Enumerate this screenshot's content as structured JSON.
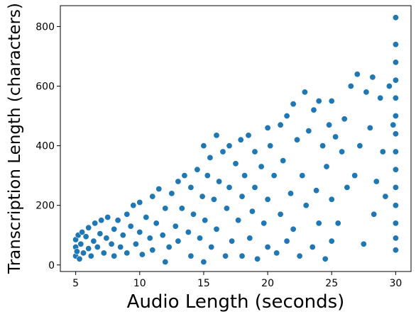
{
  "chart_data": {
    "type": "scatter",
    "title": "",
    "xlabel": "Audio Length (seconds)",
    "ylabel": "Transcription Length (characters)",
    "xlim": [
      3.8,
      31.2
    ],
    "ylim": [
      -22,
      870
    ],
    "xticks": [
      5,
      10,
      15,
      20,
      25,
      30
    ],
    "yticks": [
      0,
      200,
      400,
      600,
      800
    ],
    "grid": false,
    "legend": "none",
    "marker_color": "#1f77b4",
    "edge_color": "#ffffff",
    "points": [
      [
        5.0,
        30
      ],
      [
        5.0,
        60
      ],
      [
        5.0,
        85
      ],
      [
        5.1,
        45
      ],
      [
        5.2,
        100
      ],
      [
        5.3,
        20
      ],
      [
        5.4,
        70
      ],
      [
        5.5,
        110
      ],
      [
        5.6,
        40
      ],
      [
        5.8,
        95
      ],
      [
        6.0,
        55
      ],
      [
        6.0,
        125
      ],
      [
        6.2,
        30
      ],
      [
        6.4,
        80
      ],
      [
        6.5,
        140
      ],
      [
        6.7,
        60
      ],
      [
        6.9,
        105
      ],
      [
        7.0,
        150
      ],
      [
        7.2,
        40
      ],
      [
        7.4,
        90
      ],
      [
        7.5,
        160
      ],
      [
        7.8,
        70
      ],
      [
        8.0,
        120
      ],
      [
        8.0,
        30
      ],
      [
        8.3,
        150
      ],
      [
        8.5,
        60
      ],
      [
        8.7,
        100
      ],
      [
        9.0,
        170
      ],
      [
        9.0,
        40
      ],
      [
        9.3,
        130
      ],
      [
        9.5,
        200
      ],
      [
        9.7,
        70
      ],
      [
        10.0,
        110
      ],
      [
        10.0,
        210
      ],
      [
        10.2,
        35
      ],
      [
        10.5,
        160
      ],
      [
        10.8,
        90
      ],
      [
        11.0,
        230
      ],
      [
        11.0,
        50
      ],
      [
        11.3,
        140
      ],
      [
        11.5,
        255
      ],
      [
        11.8,
        100
      ],
      [
        12.0,
        190
      ],
      [
        12.0,
        10
      ],
      [
        12.3,
        60
      ],
      [
        12.5,
        240
      ],
      [
        12.8,
        130
      ],
      [
        13.0,
        280
      ],
      [
        13.0,
        80
      ],
      [
        13.3,
        190
      ],
      [
        13.5,
        300
      ],
      [
        13.8,
        110
      ],
      [
        14.0,
        260
      ],
      [
        14.0,
        30
      ],
      [
        14.2,
        170
      ],
      [
        14.5,
        320
      ],
      [
        14.7,
        90
      ],
      [
        14.9,
        230
      ],
      [
        15.0,
        400
      ],
      [
        15.0,
        10
      ],
      [
        15.1,
        150
      ],
      [
        15.3,
        300
      ],
      [
        15.5,
        360
      ],
      [
        15.6,
        60
      ],
      [
        15.8,
        220
      ],
      [
        16.0,
        435
      ],
      [
        16.0,
        120
      ],
      [
        16.2,
        280
      ],
      [
        16.5,
        380
      ],
      [
        16.7,
        30
      ],
      [
        16.8,
        190
      ],
      [
        17.0,
        400
      ],
      [
        17.0,
        260
      ],
      [
        17.2,
        80
      ],
      [
        17.5,
        340
      ],
      [
        17.7,
        150
      ],
      [
        17.9,
        420
      ],
      [
        18.0,
        30
      ],
      [
        18.0,
        230
      ],
      [
        18.2,
        300
      ],
      [
        18.5,
        435
      ],
      [
        18.6,
        90
      ],
      [
        18.8,
        180
      ],
      [
        19.0,
        380
      ],
      [
        19.0,
        260
      ],
      [
        19.2,
        20
      ],
      [
        19.5,
        330
      ],
      [
        19.7,
        140
      ],
      [
        20.0,
        460
      ],
      [
        20.0,
        60
      ],
      [
        20.0,
        220
      ],
      [
        20.2,
        400
      ],
      [
        20.5,
        300
      ],
      [
        20.7,
        40
      ],
      [
        21.0,
        470
      ],
      [
        21.0,
        170
      ],
      [
        21.2,
        350
      ],
      [
        21.5,
        80
      ],
      [
        21.5,
        500
      ],
      [
        21.8,
        240
      ],
      [
        22.0,
        540
      ],
      [
        22.0,
        120
      ],
      [
        22.3,
        420
      ],
      [
        22.5,
        30
      ],
      [
        22.7,
        300
      ],
      [
        22.9,
        580
      ],
      [
        23.0,
        200
      ],
      [
        23.2,
        450
      ],
      [
        23.5,
        60
      ],
      [
        23.6,
        520
      ],
      [
        23.8,
        250
      ],
      [
        24.0,
        550
      ],
      [
        24.0,
        140
      ],
      [
        24.3,
        400
      ],
      [
        24.5,
        20
      ],
      [
        24.6,
        330
      ],
      [
        24.8,
        470
      ],
      [
        25.0,
        550
      ],
      [
        25.0,
        220
      ],
      [
        25.0,
        80
      ],
      [
        25.3,
        430
      ],
      [
        25.5,
        140
      ],
      [
        25.8,
        380
      ],
      [
        26.0,
        490
      ],
      [
        26.2,
        260
      ],
      [
        26.5,
        600
      ],
      [
        26.8,
        300
      ],
      [
        27.0,
        640
      ],
      [
        27.2,
        400
      ],
      [
        27.5,
        70
      ],
      [
        27.7,
        580
      ],
      [
        28.0,
        460
      ],
      [
        28.2,
        630
      ],
      [
        28.3,
        170
      ],
      [
        28.5,
        280
      ],
      [
        28.8,
        560
      ],
      [
        29.0,
        380
      ],
      [
        29.2,
        230
      ],
      [
        29.5,
        600
      ],
      [
        29.8,
        470
      ],
      [
        30.0,
        830
      ],
      [
        30.0,
        740
      ],
      [
        30.0,
        680
      ],
      [
        30.0,
        620
      ],
      [
        30.0,
        560
      ],
      [
        30.0,
        500
      ],
      [
        30.0,
        440
      ],
      [
        30.0,
        380
      ],
      [
        30.0,
        320
      ],
      [
        30.0,
        260
      ],
      [
        30.0,
        200
      ],
      [
        30.0,
        140
      ],
      [
        30.0,
        90
      ],
      [
        30.0,
        50
      ]
    ]
  }
}
